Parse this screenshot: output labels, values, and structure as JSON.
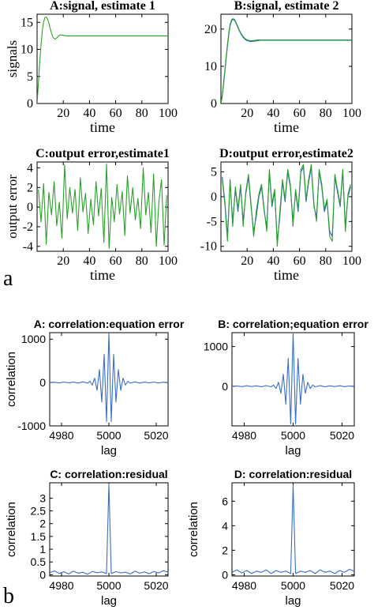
{
  "panel_labels": {
    "a": "a",
    "b": "b"
  },
  "colors": {
    "estimate": "#2ca02c",
    "true_signal": "#1f5fbf",
    "correlation": "#3a6fc4",
    "axis": "#000000"
  },
  "chart_data": [
    {
      "id": "a1",
      "type": "line",
      "title": "A:signal, estimate 1",
      "xlabel": "time",
      "ylabel": "signals",
      "xlim": [
        0,
        100
      ],
      "ylim": [
        0,
        16.5
      ],
      "xticks": [
        20,
        40,
        60,
        80,
        100
      ],
      "yticks": [
        0,
        5,
        10,
        15
      ],
      "series": [
        {
          "x": [
            0,
            1,
            2,
            3,
            4,
            5,
            6,
            7,
            8,
            9,
            10,
            11,
            12,
            13,
            14,
            15,
            16,
            17,
            18,
            20,
            22,
            25,
            30,
            40,
            60,
            80,
            100
          ],
          "y": [
            0,
            3.8,
            7.5,
            10.8,
            13.4,
            15.1,
            15.9,
            16.0,
            15.6,
            14.9,
            13.9,
            13.0,
            12.3,
            12.0,
            11.9,
            12.1,
            12.4,
            12.6,
            12.7,
            12.6,
            12.5,
            12.5,
            12.5,
            12.5,
            12.5,
            12.5,
            12.5
          ]
        }
      ]
    },
    {
      "id": "a2",
      "type": "line",
      "title": "B:signal, estimate 2",
      "xlabel": "time",
      "ylabel": "",
      "xlim": [
        0,
        100
      ],
      "ylim": [
        0,
        24
      ],
      "xticks": [
        20,
        40,
        60,
        80,
        100
      ],
      "yticks": [
        0,
        10,
        20
      ],
      "series": [
        {
          "x": [
            0,
            1,
            2,
            3,
            4,
            5,
            6,
            7,
            8,
            9,
            10,
            11,
            12,
            13,
            14,
            15,
            16,
            17,
            18,
            19,
            20,
            22,
            24,
            26,
            28,
            30,
            35,
            40,
            50,
            60,
            80,
            100
          ],
          "y": [
            0,
            2,
            5,
            8.5,
            12,
            15.5,
            18.5,
            20.8,
            22.1,
            22.6,
            22.5,
            22.0,
            21.2,
            20.4,
            19.6,
            18.9,
            18.3,
            17.8,
            17.4,
            17.1,
            16.9,
            16.7,
            16.7,
            16.8,
            16.9,
            17.0,
            17.0,
            17.0,
            17.0,
            17.0,
            17.0,
            17.0
          ]
        },
        {
          "x": [
            0,
            1,
            2,
            3,
            4,
            5,
            6,
            7,
            8,
            9,
            10,
            11,
            12,
            13,
            14,
            15,
            16,
            17,
            18,
            19,
            20,
            22,
            24,
            26,
            28,
            30,
            35,
            40,
            50,
            60,
            80,
            100
          ],
          "y": [
            0,
            2.2,
            5.5,
            9,
            12.5,
            16,
            19,
            21.2,
            22.4,
            22.8,
            22.7,
            22.2,
            21.4,
            20.6,
            19.8,
            19.1,
            18.5,
            18.0,
            17.6,
            17.3,
            17.1,
            16.9,
            16.9,
            17.0,
            17.1,
            17.1,
            17.1,
            17.1,
            17.1,
            17.1,
            17.1,
            17.1
          ]
        }
      ]
    },
    {
      "id": "a3",
      "type": "line",
      "title": "C:output error,estimate1",
      "xlabel": "time",
      "ylabel": "output error",
      "xlim": [
        0,
        100
      ],
      "ylim": [
        -4.5,
        4.6
      ],
      "xticks": [
        20,
        40,
        60,
        80,
        100
      ],
      "yticks": [
        -4,
        -2,
        0,
        2,
        4
      ],
      "series": [
        {
          "x": [
            1,
            3,
            5,
            7,
            9,
            11,
            13,
            15,
            17,
            19,
            21,
            23,
            25,
            27,
            29,
            31,
            33,
            35,
            37,
            39,
            41,
            43,
            45,
            47,
            49,
            51,
            53,
            55,
            57,
            59,
            61,
            63,
            65,
            67,
            69,
            71,
            73,
            75,
            77,
            79,
            81,
            83,
            85,
            87,
            89,
            91,
            93,
            95,
            97,
            99
          ],
          "y": [
            1.8,
            -1.5,
            2.4,
            -3.8,
            1.5,
            -0.8,
            2.6,
            -1.9,
            0.5,
            -3.2,
            4.3,
            -1.2,
            2.0,
            -0.6,
            1.8,
            -2.4,
            3.0,
            -0.5,
            1.4,
            -2.7,
            0.8,
            -1.8,
            2.6,
            -0.9,
            1.9,
            -3.6,
            4.4,
            -4.2,
            1.0,
            -1.5,
            2.3,
            -0.7,
            1.6,
            -2.9,
            3.2,
            -0.6,
            2.0,
            -1.3,
            0.9,
            -2.2,
            4.0,
            -0.8,
            1.5,
            -2.6,
            3.4,
            -4.0,
            0.6,
            2.8,
            -3.9,
            1.2
          ]
        }
      ]
    },
    {
      "id": "a4",
      "type": "line",
      "title": "D:output error,estimate2",
      "xlabel": "time",
      "ylabel": "",
      "xlim": [
        0,
        100
      ],
      "ylim": [
        -11,
        7
      ],
      "xticks": [
        20,
        40,
        60,
        80,
        100
      ],
      "yticks": [
        -10,
        -5,
        0,
        5
      ],
      "series": [
        {
          "x": [
            1,
            3,
            5,
            7,
            9,
            11,
            13,
            15,
            17,
            19,
            21,
            23,
            25,
            27,
            29,
            31,
            33,
            35,
            37,
            39,
            41,
            43,
            45,
            47,
            49,
            51,
            53,
            55,
            57,
            59,
            61,
            63,
            65,
            67,
            69,
            71,
            73,
            75,
            77,
            79,
            81,
            83,
            85,
            87,
            89,
            91,
            93,
            95,
            97,
            99
          ],
          "y": [
            4,
            -1,
            -8,
            3,
            -5,
            1.5,
            -3,
            2,
            -5,
            0.5,
            4,
            -2,
            -7,
            -4,
            0,
            2,
            -3,
            -6,
            5,
            -2,
            1,
            -9,
            -4,
            3,
            -1,
            5,
            2,
            -5,
            1,
            -3,
            5,
            6,
            -1,
            3,
            6,
            -2,
            -4,
            5,
            2,
            -3,
            -1,
            -7,
            -8,
            4,
            1,
            -2,
            5,
            -6,
            0,
            2
          ]
        },
        {
          "x": [
            1,
            3,
            5,
            7,
            9,
            11,
            13,
            15,
            17,
            19,
            21,
            23,
            25,
            27,
            29,
            31,
            33,
            35,
            37,
            39,
            41,
            43,
            45,
            47,
            49,
            51,
            53,
            55,
            57,
            59,
            61,
            63,
            65,
            67,
            69,
            71,
            73,
            75,
            77,
            79,
            81,
            83,
            85,
            87,
            89,
            91,
            93,
            95,
            97,
            99
          ],
          "y": [
            3.5,
            -1.5,
            -9,
            3.5,
            -6,
            2,
            -2.5,
            2.5,
            -6,
            1,
            4.5,
            -1.5,
            -8,
            -3,
            0.5,
            2.5,
            -2.5,
            -7,
            5.5,
            -1.5,
            1.5,
            -10,
            -3,
            3.5,
            -0.5,
            5.5,
            2.5,
            -6,
            1.5,
            -2.5,
            5.5,
            6.5,
            -0.5,
            3.5,
            6.5,
            -1.5,
            -5,
            5.5,
            2.5,
            -2.5,
            -0.5,
            -8,
            -9,
            4.5,
            1.5,
            -1.5,
            5.5,
            -7,
            0.5,
            2.5
          ]
        }
      ]
    },
    {
      "id": "b1",
      "type": "line",
      "title": "A: correlation:equation error",
      "xlabel": "lag",
      "ylabel": "correlation",
      "xlim": [
        4975,
        5025
      ],
      "ylim": [
        -1000,
        1150
      ],
      "xticks": [
        4980,
        5000,
        5020
      ],
      "yticks": [
        -1000,
        0,
        1000
      ],
      "series": [
        {
          "x": [
            4975,
            4977,
            4979,
            4981,
            4983,
            4985,
            4987,
            4989,
            4991,
            4992,
            4993,
            4994,
            4995,
            4996,
            4997,
            4998,
            4999,
            5000,
            5001,
            5002,
            5003,
            5004,
            5005,
            5006,
            5007,
            5008,
            5009,
            5011,
            5013,
            5015,
            5017,
            5019,
            5021,
            5023,
            5025
          ],
          "y": [
            0,
            8,
            -10,
            12,
            -8,
            10,
            -12,
            14,
            -15,
            30,
            -60,
            100,
            -180,
            300,
            -450,
            650,
            -900,
            1150,
            -900,
            650,
            -450,
            300,
            -180,
            100,
            -60,
            30,
            -15,
            14,
            -12,
            10,
            -8,
            12,
            -10,
            8,
            0
          ]
        }
      ]
    },
    {
      "id": "b2",
      "type": "line",
      "title": "B: correlation;equation error",
      "xlabel": "lag",
      "ylabel": "",
      "xlim": [
        4975,
        5025
      ],
      "ylim": [
        -1000,
        1350
      ],
      "xticks": [
        4980,
        5000,
        5020
      ],
      "yticks": [
        0,
        1000
      ],
      "series": [
        {
          "x": [
            4975,
            4977,
            4979,
            4981,
            4983,
            4985,
            4987,
            4989,
            4991,
            4992,
            4993,
            4994,
            4995,
            4996,
            4997,
            4998,
            4999,
            5000,
            5001,
            5002,
            5003,
            5004,
            5005,
            5006,
            5007,
            5008,
            5009,
            5011,
            5013,
            5015,
            5017,
            5019,
            5021,
            5023,
            5025
          ],
          "y": [
            0,
            8,
            -10,
            12,
            -8,
            10,
            -12,
            14,
            -15,
            30,
            -60,
            100,
            -180,
            300,
            -450,
            700,
            -950,
            1350,
            -950,
            700,
            -450,
            300,
            -180,
            100,
            -60,
            30,
            -15,
            14,
            -12,
            10,
            -8,
            12,
            -10,
            8,
            0
          ]
        }
      ]
    },
    {
      "id": "b3",
      "type": "line",
      "title": "C: correlation:residual",
      "xlabel": "lag",
      "ylabel": "correlation",
      "xlim": [
        4975,
        5025
      ],
      "ylim": [
        -0.05,
        3.6
      ],
      "xticks": [
        4980,
        5000,
        5020
      ],
      "yticks": [
        0,
        0.5,
        1,
        1.5,
        2,
        2.5,
        3
      ],
      "series": [
        {
          "x": [
            4975,
            4977,
            4979,
            4981,
            4983,
            4985,
            4987,
            4989,
            4991,
            4993,
            4995,
            4997,
            4999,
            5000,
            5001,
            5003,
            5005,
            5007,
            5009,
            5011,
            5013,
            5015,
            5017,
            5019,
            5021,
            5023,
            5025
          ],
          "y": [
            0.08,
            0.15,
            0.05,
            0.12,
            0.03,
            0.14,
            0.06,
            0.1,
            0.02,
            0.13,
            0.08,
            0.11,
            0.05,
            3.55,
            0.05,
            0.12,
            0.07,
            0.1,
            0.03,
            0.14,
            0.06,
            0.11,
            0.04,
            0.13,
            0.07,
            0.16,
            0.1
          ]
        }
      ]
    },
    {
      "id": "b4",
      "type": "line",
      "title": "D: correlation:residual",
      "xlabel": "lag",
      "ylabel": "correlation",
      "xlim": [
        4975,
        5025
      ],
      "ylim": [
        -0.1,
        7.5
      ],
      "xticks": [
        4980,
        5000,
        5020
      ],
      "yticks": [
        0,
        2,
        4,
        6
      ],
      "series": [
        {
          "x": [
            4975,
            4977,
            4979,
            4981,
            4983,
            4985,
            4987,
            4989,
            4991,
            4993,
            4995,
            4997,
            4999,
            5000,
            5001,
            5003,
            5005,
            5007,
            5009,
            5011,
            5013,
            5015,
            5017,
            5019,
            5021,
            5023,
            5025
          ],
          "y": [
            0.2,
            0.4,
            0.15,
            0.35,
            0.1,
            0.3,
            0.2,
            0.4,
            0.1,
            0.35,
            0.2,
            0.3,
            0.1,
            7.3,
            0.1,
            0.3,
            0.2,
            0.35,
            0.1,
            0.4,
            0.2,
            0.3,
            0.1,
            0.35,
            0.2,
            0.45,
            0.3
          ]
        }
      ]
    }
  ]
}
